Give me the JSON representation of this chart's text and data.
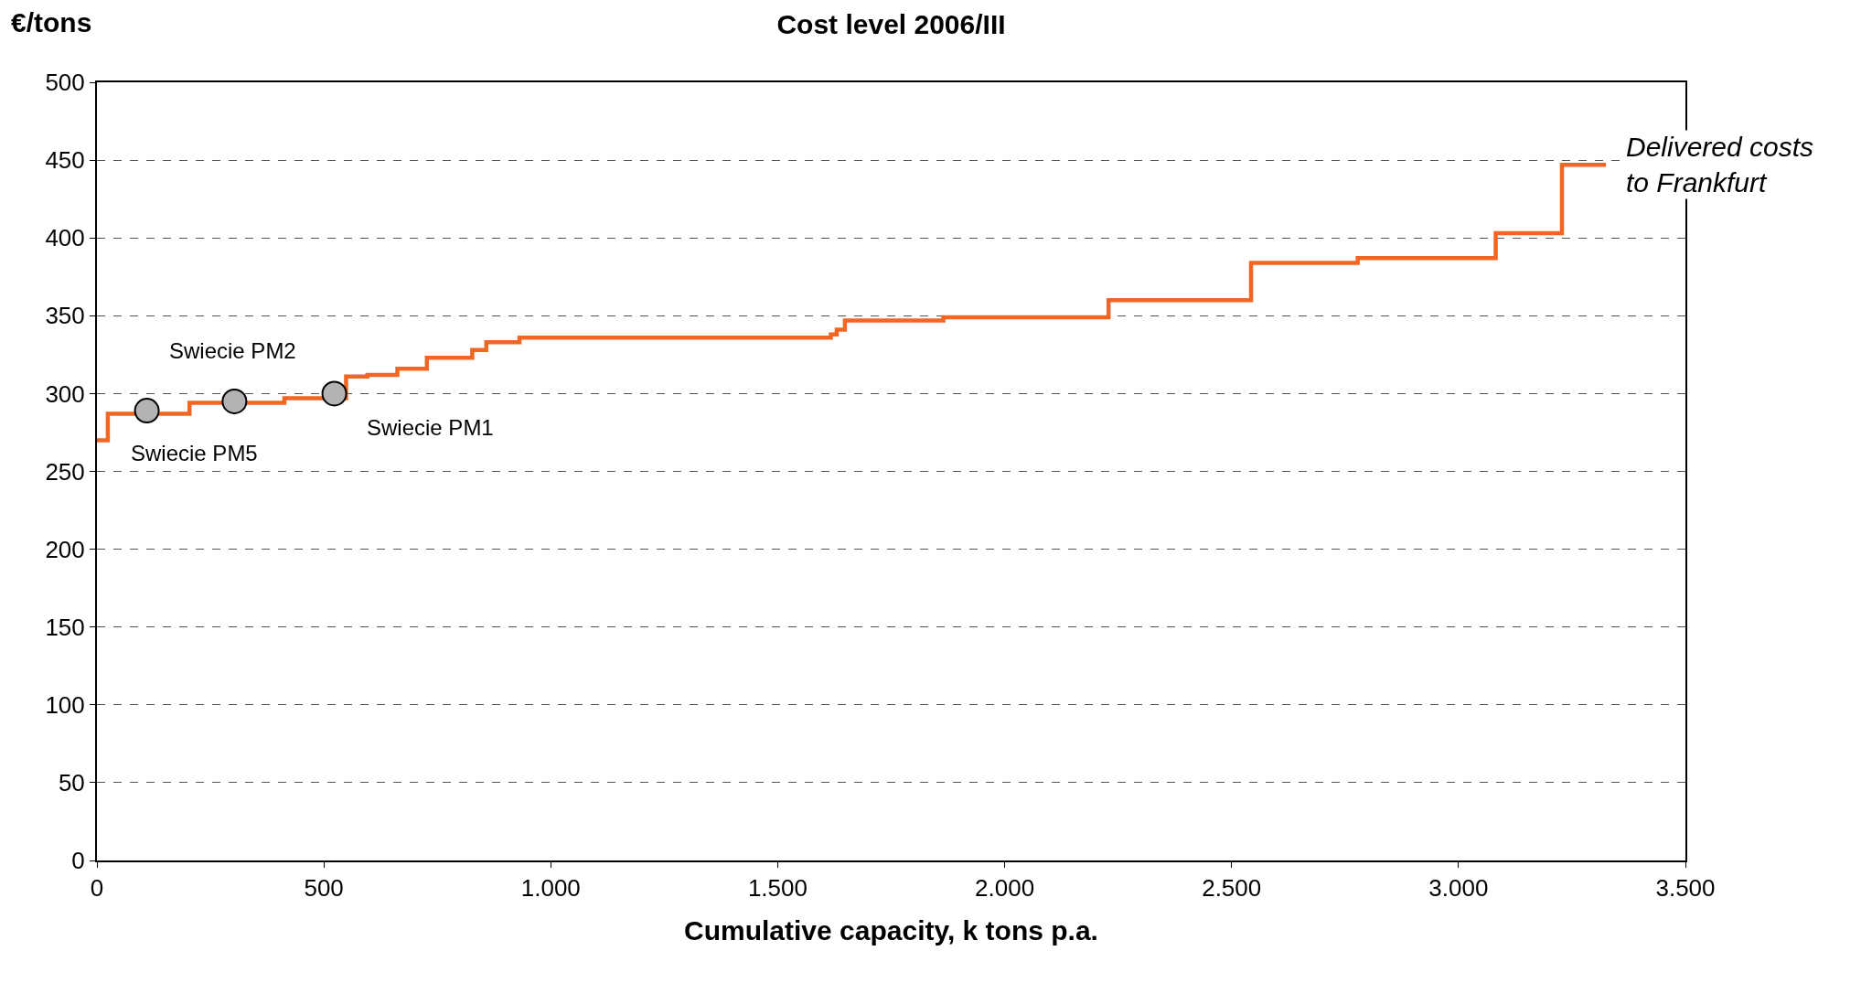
{
  "chart_data": {
    "type": "step",
    "title": "Cost level 2006/III",
    "xlabel": "Cumulative capacity, k tons p.a.",
    "ylabel": "€/tons",
    "xlim": [
      0,
      3500
    ],
    "xticks": [
      0,
      500,
      {
        "value": 1000,
        "label": "1.000"
      },
      {
        "value": 1500,
        "label": "1.500"
      },
      {
        "value": 2000,
        "label": "2.000"
      },
      {
        "value": 2500,
        "label": "2.500"
      },
      {
        "value": 3000,
        "label": "3.000"
      },
      {
        "value": 3500,
        "label": "3.500"
      }
    ],
    "ylim": [
      0,
      500
    ],
    "yticks": [
      0,
      50,
      100,
      150,
      200,
      250,
      300,
      350,
      400,
      450,
      500
    ],
    "grid": "y",
    "series": [
      {
        "color": "#f26522",
        "marker": "none",
        "x": [
          0,
          24,
          204,
          413,
          549,
          596,
          662,
          727,
          827,
          858,
          931,
          1617,
          1630,
          1648,
          1865,
          2229,
          2543,
          2778,
          3082,
          3228,
          3325
        ],
        "values": [
          270,
          287,
          294,
          297,
          311,
          312,
          316,
          323,
          328,
          333,
          336,
          338,
          341,
          347,
          349,
          360,
          384,
          387,
          403,
          447,
          447
        ]
      },
      {
        "type": "scatter",
        "color": "#b3b3b3",
        "marker": "circle",
        "x": [
          110,
          303,
          523
        ],
        "values": [
          289,
          295,
          300
        ]
      }
    ],
    "annotations": [
      {
        "text": "Swiecie PM5",
        "x": 110,
        "y": 289
      },
      {
        "text": "Swiecie PM2",
        "x": 303,
        "y": 295
      },
      {
        "text": "Swiecie PM1",
        "x": 523,
        "y": 300
      },
      {
        "text": "Delivered costs\nto Frankfurt",
        "x": 3325,
        "y": 447
      }
    ]
  }
}
